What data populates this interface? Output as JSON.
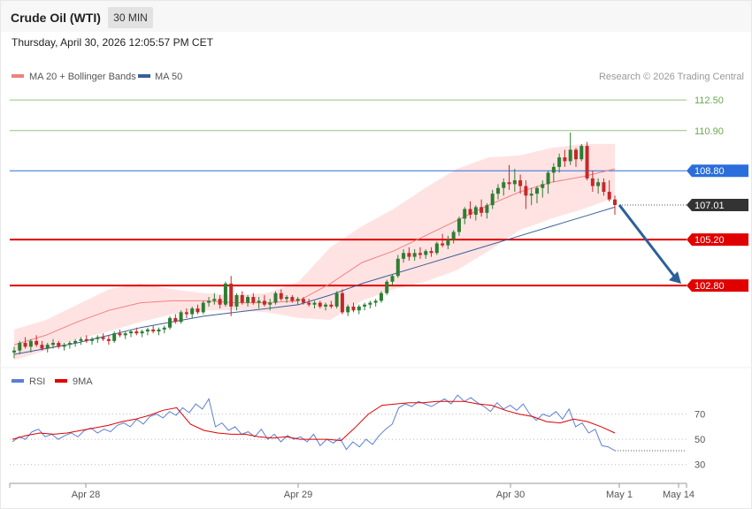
{
  "header": {
    "title": "Crude Oil (WTI)",
    "timeframe": "30 MIN",
    "datetime": "Thursday, April 30, 2026 12:05:57 PM CET"
  },
  "legend": {
    "bb": "MA 20 + Bollinger Bands",
    "ma50": "MA 50",
    "credit": "Research © 2026 Trading Central",
    "rsi": "RSI",
    "rsi_ma": "9MA"
  },
  "colors": {
    "up": "#2e7d32",
    "down": "#c62828",
    "bb_fill": "#ffe3e3",
    "ma20": "#f08080",
    "ma50": "#3a5f9a",
    "support": "#e00000",
    "resistance_green": "#6aa84f",
    "pivot_blue": "#2a6edb",
    "arrow": "#2d5f9a",
    "rsi": "#5b7fd6"
  },
  "chart_data": [
    {
      "type": "candlestick",
      "title": "Crude Oil (WTI)",
      "x_ticks": [
        "Apr 28",
        "Apr 29",
        "Apr 30",
        "May 1",
        "May 14"
      ],
      "ylim": [
        98.6,
        113.2
      ],
      "levels": [
        {
          "label": "112.50",
          "value": 112.5,
          "kind": "resistance"
        },
        {
          "label": "110.90",
          "value": 110.9,
          "kind": "resistance"
        },
        {
          "label": "108.80",
          "value": 108.8,
          "kind": "pivot"
        },
        {
          "label": "107.01",
          "value": 107.01,
          "kind": "last"
        },
        {
          "label": "105.20",
          "value": 105.2,
          "kind": "support"
        },
        {
          "label": "102.80",
          "value": 102.8,
          "kind": "support"
        }
      ],
      "last_price": 107.01,
      "forecast_target": 102.8,
      "series": [
        {
          "name": "Price",
          "ohlc": [
            [
              99.3,
              99.6,
              99.0,
              99.4
            ],
            [
              99.4,
              99.9,
              99.2,
              99.8
            ],
            [
              99.8,
              100.1,
              99.5,
              99.6
            ],
            [
              99.6,
              100.0,
              99.3,
              99.9
            ],
            [
              99.9,
              100.2,
              99.6,
              99.7
            ],
            [
              99.7,
              99.9,
              99.4,
              99.5
            ],
            [
              99.5,
              99.8,
              99.3,
              99.7
            ],
            [
              99.7,
              100.0,
              99.5,
              99.8
            ],
            [
              99.8,
              99.9,
              99.5,
              99.6
            ],
            [
              99.6,
              99.8,
              99.4,
              99.7
            ],
            [
              99.7,
              99.9,
              99.5,
              99.8
            ],
            [
              99.8,
              100.0,
              99.6,
              99.9
            ],
            [
              99.9,
              100.1,
              99.7,
              100.0
            ],
            [
              100.0,
              100.2,
              99.8,
              99.9
            ],
            [
              99.9,
              100.1,
              99.7,
              100.0
            ],
            [
              100.0,
              100.2,
              99.8,
              100.1
            ],
            [
              100.1,
              100.3,
              99.9,
              100.0
            ],
            [
              100.0,
              100.2,
              99.7,
              99.9
            ],
            [
              99.9,
              100.4,
              99.8,
              100.3
            ],
            [
              100.3,
              100.5,
              100.1,
              100.2
            ],
            [
              100.2,
              100.4,
              100.0,
              100.3
            ],
            [
              100.3,
              100.5,
              100.1,
              100.4
            ],
            [
              100.4,
              100.6,
              100.2,
              100.3
            ],
            [
              100.3,
              100.5,
              100.1,
              100.4
            ],
            [
              100.4,
              100.6,
              100.2,
              100.5
            ],
            [
              100.5,
              100.7,
              100.3,
              100.4
            ],
            [
              100.4,
              100.6,
              100.2,
              100.5
            ],
            [
              100.5,
              100.7,
              100.3,
              100.6
            ],
            [
              100.6,
              101.2,
              100.5,
              101.1
            ],
            [
              101.1,
              101.3,
              100.8,
              100.9
            ],
            [
              100.9,
              101.5,
              100.8,
              101.4
            ],
            [
              101.4,
              101.6,
              101.1,
              101.3
            ],
            [
              101.3,
              101.7,
              101.1,
              101.6
            ],
            [
              101.6,
              101.8,
              101.3,
              101.4
            ],
            [
              101.4,
              102.0,
              101.3,
              101.9
            ],
            [
              101.9,
              102.2,
              101.7,
              102.0
            ],
            [
              102.0,
              102.4,
              101.8,
              102.1
            ],
            [
              102.1,
              102.3,
              101.6,
              101.8
            ],
            [
              101.8,
              103.0,
              101.7,
              102.9
            ],
            [
              102.9,
              103.3,
              101.2,
              101.7
            ],
            [
              101.7,
              102.4,
              101.5,
              102.3
            ],
            [
              102.3,
              102.5,
              101.8,
              101.9
            ],
            [
              101.9,
              102.3,
              101.7,
              102.2
            ],
            [
              102.2,
              102.4,
              101.8,
              101.9
            ],
            [
              101.9,
              102.2,
              101.6,
              102.0
            ],
            [
              102.0,
              102.3,
              101.7,
              101.8
            ],
            [
              101.8,
              102.1,
              101.5,
              101.9
            ],
            [
              101.9,
              102.5,
              101.8,
              102.4
            ],
            [
              102.4,
              102.6,
              102.0,
              102.1
            ],
            [
              102.1,
              102.3,
              101.9,
              102.2
            ],
            [
              102.2,
              102.3,
              101.9,
              102.0
            ],
            [
              102.0,
              102.2,
              101.8,
              102.1
            ],
            [
              102.1,
              102.2,
              101.8,
              101.9
            ],
            [
              101.9,
              102.1,
              101.7,
              101.8
            ],
            [
              101.8,
              102.0,
              101.6,
              101.9
            ],
            [
              101.9,
              102.0,
              101.6,
              101.7
            ],
            [
              101.7,
              101.9,
              101.5,
              101.8
            ],
            [
              101.8,
              102.0,
              101.6,
              101.7
            ],
            [
              101.7,
              102.5,
              101.6,
              102.4
            ],
            [
              102.4,
              102.6,
              101.3,
              101.4
            ],
            [
              101.4,
              101.8,
              101.2,
              101.7
            ],
            [
              101.7,
              101.9,
              101.4,
              101.5
            ],
            [
              101.5,
              101.8,
              101.3,
              101.7
            ],
            [
              101.7,
              101.9,
              101.5,
              101.8
            ],
            [
              101.8,
              102.0,
              101.6,
              101.9
            ],
            [
              101.9,
              102.1,
              101.7,
              102.0
            ],
            [
              102.0,
              102.5,
              101.9,
              102.4
            ],
            [
              102.4,
              103.1,
              102.3,
              103.0
            ],
            [
              103.0,
              103.4,
              102.8,
              103.3
            ],
            [
              103.3,
              104.4,
              103.2,
              104.2
            ],
            [
              104.2,
              104.7,
              104.0,
              104.5
            ],
            [
              104.5,
              104.8,
              104.1,
              104.3
            ],
            [
              104.3,
              104.7,
              104.1,
              104.5
            ],
            [
              104.5,
              104.8,
              104.2,
              104.4
            ],
            [
              104.4,
              104.7,
              104.2,
              104.6
            ],
            [
              104.6,
              104.8,
              104.3,
              104.5
            ],
            [
              104.5,
              105.1,
              104.4,
              105.0
            ],
            [
              105.0,
              105.5,
              104.8,
              104.9
            ],
            [
              104.9,
              105.4,
              104.7,
              105.2
            ],
            [
              105.2,
              105.7,
              105.0,
              105.6
            ],
            [
              105.6,
              106.4,
              105.4,
              106.3
            ],
            [
              106.3,
              106.9,
              106.0,
              106.8
            ],
            [
              106.8,
              107.2,
              106.3,
              106.5
            ],
            [
              106.5,
              107.0,
              106.2,
              106.9
            ],
            [
              106.9,
              107.3,
              106.4,
              106.6
            ],
            [
              106.6,
              107.1,
              106.3,
              107.0
            ],
            [
              107.0,
              107.8,
              106.8,
              107.6
            ],
            [
              107.6,
              108.1,
              107.3,
              107.9
            ],
            [
              107.9,
              108.4,
              107.5,
              108.2
            ],
            [
              108.2,
              109.1,
              107.8,
              108.1
            ],
            [
              108.1,
              108.9,
              107.7,
              108.3
            ],
            [
              108.3,
              108.6,
              107.6,
              108.0
            ],
            [
              108.0,
              108.3,
              106.8,
              107.5
            ],
            [
              107.5,
              107.9,
              107.0,
              107.6
            ],
            [
              107.6,
              108.0,
              107.1,
              107.9
            ],
            [
              107.9,
              108.3,
              107.4,
              108.1
            ],
            [
              108.1,
              108.8,
              107.6,
              108.7
            ],
            [
              108.7,
              109.2,
              108.2,
              109.0
            ],
            [
              109.0,
              109.7,
              108.7,
              109.5
            ],
            [
              109.5,
              109.9,
              109.0,
              109.3
            ],
            [
              109.3,
              110.8,
              109.1,
              109.9
            ],
            [
              109.9,
              110.0,
              109.0,
              109.4
            ],
            [
              109.4,
              110.2,
              109.3,
              110.1
            ],
            [
              110.1,
              110.3,
              108.3,
              108.4
            ],
            [
              108.4,
              108.8,
              107.7,
              108.0
            ],
            [
              108.0,
              108.4,
              107.6,
              108.2
            ],
            [
              108.2,
              108.4,
              107.5,
              107.7
            ],
            [
              107.7,
              108.3,
              107.2,
              107.3
            ],
            [
              107.3,
              107.5,
              106.5,
              107.01
            ]
          ]
        },
        {
          "name": "MA 20",
          "values": [
            99.7,
            100.2,
            100.9,
            101.5,
            101.9,
            102.0,
            102.0,
            101.9,
            101.9,
            102.0,
            102.9,
            104.0,
            104.6,
            105.4,
            106.2,
            107.0,
            107.7,
            108.2,
            108.5,
            108.9
          ]
        },
        {
          "name": "MA 50",
          "values": [
            99.2,
            99.5,
            99.8,
            100.2,
            100.6,
            100.9,
            101.2,
            101.4,
            101.6,
            101.8,
            102.3,
            102.9,
            103.4,
            103.9,
            104.4,
            104.9,
            105.4,
            105.9,
            106.4,
            106.9
          ]
        },
        {
          "name": "BB Upper",
          "values": [
            100.5,
            101.0,
            101.8,
            102.6,
            102.9,
            102.6,
            102.4,
            102.3,
            102.4,
            103.0,
            104.8,
            105.9,
            106.8,
            107.9,
            108.9,
            109.5,
            109.6,
            110.0,
            110.2,
            110.2
          ]
        },
        {
          "name": "BB Lower",
          "values": [
            98.9,
            99.4,
            100.0,
            100.4,
            100.9,
            101.3,
            101.5,
            101.5,
            101.4,
            101.1,
            101.0,
            102.0,
            102.6,
            103.0,
            103.6,
            104.6,
            105.7,
            106.3,
            106.8,
            107.4
          ]
        }
      ]
    },
    {
      "type": "line",
      "title": "RSI",
      "ylim": [
        20,
        90
      ],
      "y_ticks": [
        70,
        50,
        30
      ],
      "last_value": 41,
      "series": [
        {
          "name": "RSI",
          "values": [
            48,
            52,
            50,
            56,
            58,
            52,
            54,
            50,
            53,
            55,
            52,
            57,
            59,
            55,
            58,
            56,
            61,
            63,
            60,
            66,
            62,
            68,
            70,
            67,
            72,
            69,
            75,
            71,
            78,
            74,
            82,
            60,
            63,
            57,
            60,
            54,
            56,
            52,
            58,
            50,
            54,
            48,
            53,
            50,
            52,
            48,
            54,
            45,
            50,
            47,
            51,
            42,
            48,
            44,
            50,
            46,
            53,
            58,
            62,
            75,
            78,
            76,
            80,
            78,
            76,
            79,
            82,
            78,
            85,
            80,
            83,
            79,
            76,
            72,
            79,
            74,
            77,
            73,
            78,
            70,
            65,
            70,
            68,
            72,
            66,
            74,
            60,
            63,
            55,
            58,
            45,
            44,
            41
          ]
        },
        {
          "name": "9MA",
          "values": [
            50,
            53,
            55,
            54,
            55,
            57,
            59,
            61,
            64,
            66,
            69,
            73,
            75,
            62,
            57,
            55,
            54,
            54,
            52,
            51,
            52,
            50,
            50,
            50,
            49,
            59,
            70,
            77,
            78,
            79,
            79,
            80,
            80,
            80,
            78,
            77,
            73,
            70,
            68,
            64,
            63,
            66,
            64,
            60,
            55
          ]
        }
      ]
    }
  ]
}
